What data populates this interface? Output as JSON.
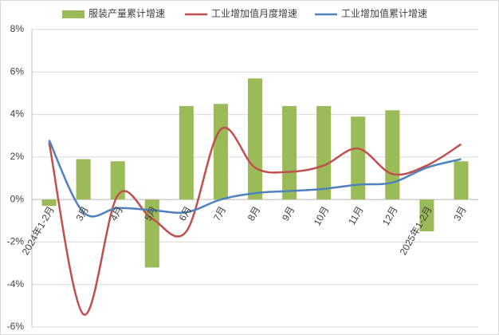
{
  "chart_data": {
    "type": "bar-line",
    "categories": [
      "2024年1-2月",
      "3月",
      "4月",
      "5月",
      "6月",
      "7月",
      "8月",
      "9月",
      "10月",
      "11月",
      "12月",
      "2025年1-2月",
      "3月"
    ],
    "series": [
      {
        "name": "服装产量累计增速",
        "type": "bar",
        "color": "#9bbb59",
        "values": [
          -0.3,
          1.9,
          1.8,
          -3.2,
          4.4,
          4.5,
          5.7,
          4.4,
          4.4,
          3.9,
          4.2,
          -1.5,
          1.8
        ]
      },
      {
        "name": "工业增加值月度增速",
        "type": "line",
        "color": "#c0504d",
        "values": [
          2.7,
          -5.4,
          0.2,
          -0.9,
          -1.5,
          3.3,
          1.5,
          1.3,
          1.6,
          2.4,
          1.2,
          1.6,
          2.6
        ]
      },
      {
        "name": "工业增加值累计增速",
        "type": "line",
        "color": "#4f81bd",
        "values": [
          2.8,
          -0.6,
          -0.4,
          -0.5,
          -0.6,
          0.0,
          0.3,
          0.4,
          0.5,
          0.7,
          0.8,
          1.5,
          1.9
        ]
      }
    ],
    "ylim": [
      -6,
      8
    ],
    "yticks": [
      {
        "value": -6,
        "label": "-6%"
      },
      {
        "value": -4,
        "label": "-4%"
      },
      {
        "value": -2,
        "label": "-2%"
      },
      {
        "value": 0,
        "label": "0%"
      },
      {
        "value": 2,
        "label": "2%"
      },
      {
        "value": 4,
        "label": "4%"
      },
      {
        "value": 6,
        "label": "6%"
      },
      {
        "value": 8,
        "label": "8%"
      }
    ],
    "grid": true,
    "legend": "top"
  }
}
